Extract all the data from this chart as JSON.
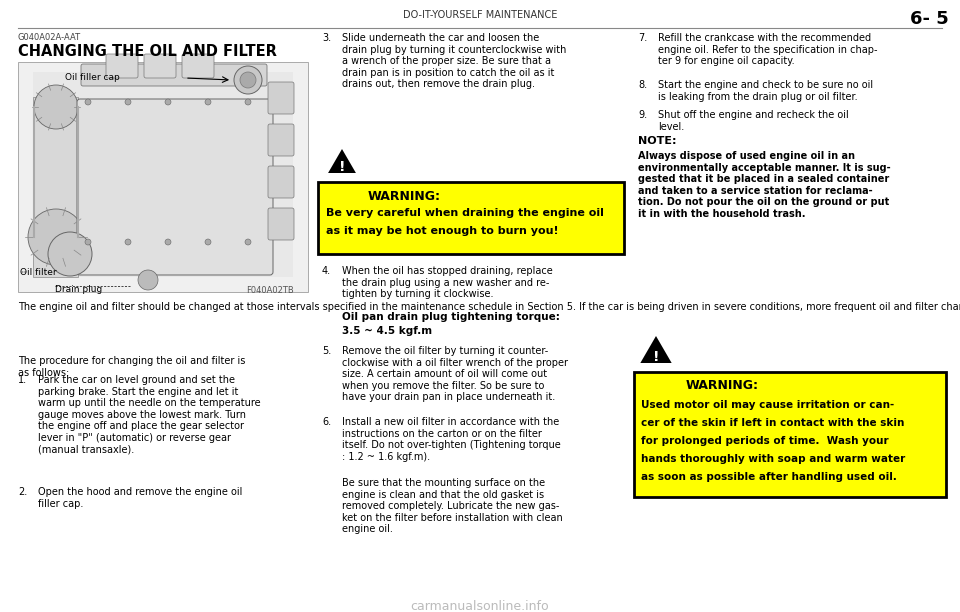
{
  "bg_color": "#ffffff",
  "page_header_text": "DO-IT-YOURSELF MAINTENANCE",
  "page_number": "6- 5",
  "section_code": "G040A02A-AAT",
  "section_title": "CHANGING THE OIL AND FILTER",
  "engine_image_code": "F040A02TB",
  "body_text_1": "The engine oil and filter should be changed at those intervals specified in the maintenance schedule in Section 5. If the car is being driven in severe conditions, more frequent oil and filter changes are required.",
  "body_text_2": "The procedure for changing the oil and filter is\nas follows:",
  "step1": "Park the car on level ground and set the\nparking brake. Start the engine and let it\nwarm up until the needle on the temperature\ngauge moves above the lowest mark. Turn\nthe engine off and place the gear selector\nlever in \"P\" (automatic) or reverse gear\n(manual transaxle).",
  "step2": "Open the hood and remove the engine oil\nfiller cap.",
  "step3": "Slide underneath the car and loosen the\ndrain plug by turning it counterclockwise with\na wrench of the proper size. Be sure that a\ndrain pan is in position to catch the oil as it\ndrains out, then remove the drain plug.",
  "warning1_line1": "WARNING:",
  "warning1_line2": "Be very careful when draining the engine oil",
  "warning1_line3": "as it may be hot enough to burn you!",
  "step4": "When the oil has stopped draining, replace\nthe drain plug using a new washer and re-\ntighten by turning it clockwise.",
  "torque_label": "Oil pan drain plug tightening torque:",
  "torque_value": "3.5 ~ 4.5 kgf.m",
  "step5": "Remove the oil filter by turning it counter-\nclockwise with a oil filter wrench of the proper\nsize. A certain amount of oil will come out\nwhen you remove the filter. So be sure to\nhave your drain pan in place underneath it.",
  "step6_a": "Install a new oil filter in accordance with the\ninstructions on the carton or on the filter\nitself. Do not over-tighten (Tightening torque\n: 1.2 ~ 1.6 kgf.m).",
  "step6_b": "Be sure that the mounting surface on the\nengine is clean and that the old gasket is\nremoved completely. Lubricate the new gas-\nket on the filter before installation with clean\nengine oil.",
  "step7": "Refill the crankcase with the recommended\nengine oil. Refer to the specification in chap-\nter 9 for engine oil capacity.",
  "step8": "Start the engine and check to be sure no oil\nis leaking from the drain plug or oil filter.",
  "step9": "Shut off the engine and recheck the oil\nlevel.",
  "note_label": "NOTE:",
  "note_text": "Always dispose of used engine oil in an\nenvironmentally acceptable manner. It is sug-\ngested that it be placed in a sealed container\nand taken to a service station for reclama-\ntion. Do not pour the oil on the ground or put\nit in with the household trash.",
  "warning2_line1": "WARNING:",
  "warning2_line2": "Used motor oil may cause irritation or can-",
  "warning2_line3": "cer of the skin if left in contact with the skin",
  "warning2_line4": "for prolonged periods of time.  Wash your",
  "warning2_line5": "hands thoroughly with soap and warm water",
  "warning2_line6": "as soon as possible after handling used oil.",
  "footer_text": "carmanualsonline.info",
  "warning_bg": "#ffff00",
  "warning_border": "#000000"
}
